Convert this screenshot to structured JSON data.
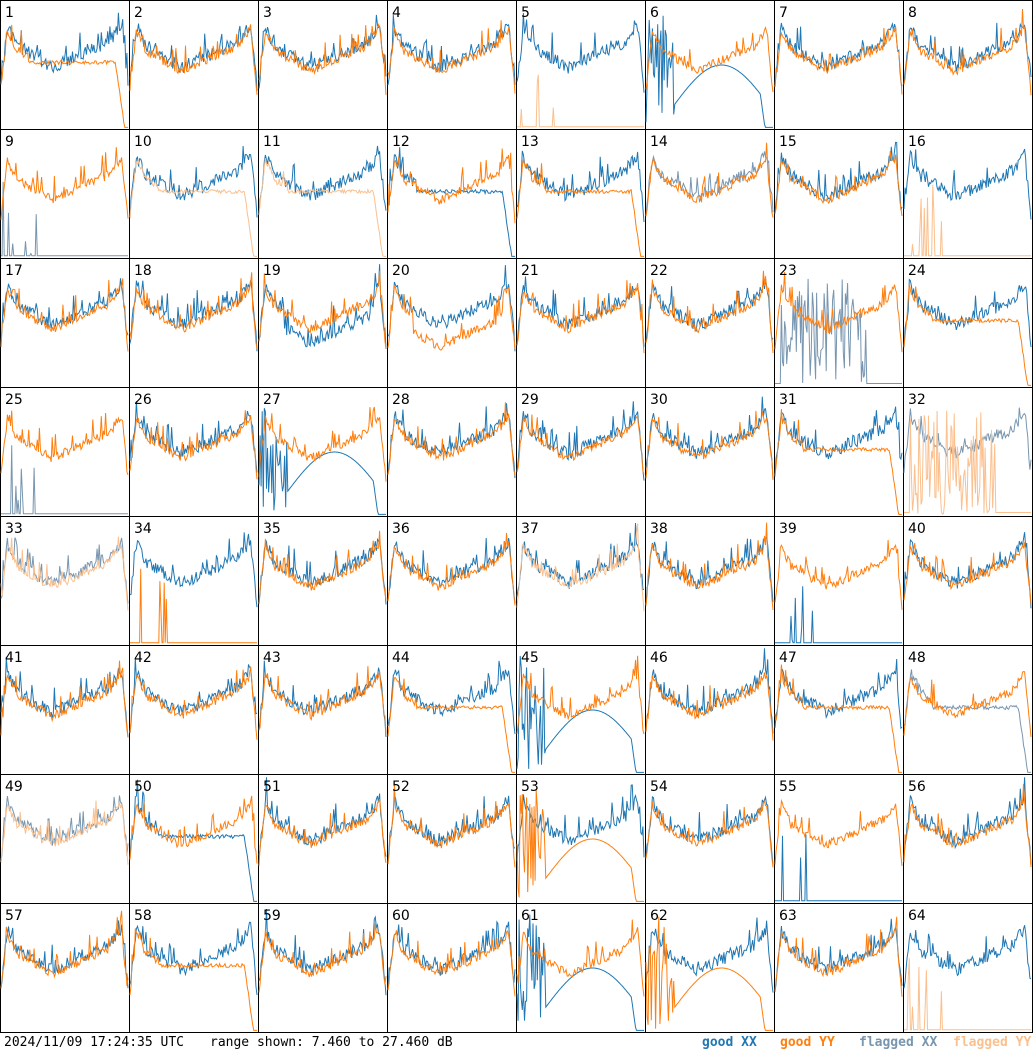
{
  "footer": {
    "timestamp": "2024/11/09 17:24:35 UTC",
    "range": "range shown: 7.460 to 27.460 dB",
    "legend": {
      "good_xx": "good XX",
      "good_yy": "good YY",
      "flagged_xx": "flagged XX",
      "flagged_yy": "flagged YY"
    }
  },
  "colors": {
    "good_xx": "#1f77b4",
    "good_yy": "#ff7f0e",
    "flagged_xx": "#7896b0",
    "flagged_yy": "#fbc08e"
  },
  "chart_data": {
    "type": "line",
    "ylim": [
      7.46,
      27.46
    ],
    "yunit": "dB",
    "panels": [
      {
        "id": "1",
        "xx": "good",
        "yy": "good",
        "shape": "yy-drop"
      },
      {
        "id": "2",
        "xx": "good",
        "yy": "good",
        "shape": "normal"
      },
      {
        "id": "3",
        "xx": "good",
        "yy": "good",
        "shape": "normal"
      },
      {
        "id": "4",
        "xx": "good",
        "yy": "good",
        "shape": "normal"
      },
      {
        "id": "5",
        "xx": "good",
        "yy": "flagged",
        "shape": "yy-dead"
      },
      {
        "id": "6",
        "xx": "good",
        "yy": "good",
        "shape": "xx-wave"
      },
      {
        "id": "7",
        "xx": "good",
        "yy": "good",
        "shape": "normal"
      },
      {
        "id": "8",
        "xx": "good",
        "yy": "good",
        "shape": "normal"
      },
      {
        "id": "9",
        "xx": "flagged",
        "yy": "good",
        "shape": "xx-dead"
      },
      {
        "id": "10",
        "xx": "good",
        "yy": "flagged",
        "shape": "yy-drop"
      },
      {
        "id": "11",
        "xx": "good",
        "yy": "flagged",
        "shape": "yy-drop"
      },
      {
        "id": "12",
        "xx": "good",
        "yy": "good",
        "shape": "xx-drop"
      },
      {
        "id": "13",
        "xx": "good",
        "yy": "good",
        "shape": "yy-drop"
      },
      {
        "id": "14",
        "xx": "flagged",
        "yy": "good",
        "shape": "normal"
      },
      {
        "id": "15",
        "xx": "good",
        "yy": "good",
        "shape": "normal"
      },
      {
        "id": "16",
        "xx": "good",
        "yy": "flagged",
        "shape": "yy-dead"
      },
      {
        "id": "17",
        "xx": "good",
        "yy": "good",
        "shape": "normal"
      },
      {
        "id": "18",
        "xx": "good",
        "yy": "good",
        "shape": "normal"
      },
      {
        "id": "19",
        "xx": "good",
        "yy": "good",
        "shape": "xx-low"
      },
      {
        "id": "20",
        "xx": "good",
        "yy": "good",
        "shape": "yy-low"
      },
      {
        "id": "21",
        "xx": "good",
        "yy": "good",
        "shape": "normal"
      },
      {
        "id": "22",
        "xx": "good",
        "yy": "good",
        "shape": "normal"
      },
      {
        "id": "23",
        "xx": "flagged",
        "yy": "good",
        "shape": "xx-noise"
      },
      {
        "id": "24",
        "xx": "good",
        "yy": "good",
        "shape": "yy-drop"
      },
      {
        "id": "25",
        "xx": "flagged",
        "yy": "good",
        "shape": "xx-dead"
      },
      {
        "id": "26",
        "xx": "good",
        "yy": "good",
        "shape": "normal"
      },
      {
        "id": "27",
        "xx": "good",
        "yy": "good",
        "shape": "xx-wave"
      },
      {
        "id": "28",
        "xx": "good",
        "yy": "good",
        "shape": "normal"
      },
      {
        "id": "29",
        "xx": "good",
        "yy": "good",
        "shape": "normal"
      },
      {
        "id": "30",
        "xx": "good",
        "yy": "good",
        "shape": "normal"
      },
      {
        "id": "31",
        "xx": "good",
        "yy": "good",
        "shape": "yy-drop"
      },
      {
        "id": "32",
        "xx": "flagged",
        "yy": "flagged",
        "shape": "yy-noise"
      },
      {
        "id": "33",
        "xx": "flagged",
        "yy": "flagged",
        "shape": "normal"
      },
      {
        "id": "34",
        "xx": "good",
        "yy": "good",
        "shape": "yy-dead"
      },
      {
        "id": "35",
        "xx": "good",
        "yy": "good",
        "shape": "normal"
      },
      {
        "id": "36",
        "xx": "good",
        "yy": "good",
        "shape": "normal"
      },
      {
        "id": "37",
        "xx": "good",
        "yy": "flagged",
        "shape": "normal"
      },
      {
        "id": "38",
        "xx": "good",
        "yy": "good",
        "shape": "normal"
      },
      {
        "id": "39",
        "xx": "good",
        "yy": "good",
        "shape": "xx-dead"
      },
      {
        "id": "40",
        "xx": "good",
        "yy": "good",
        "shape": "normal"
      },
      {
        "id": "41",
        "xx": "good",
        "yy": "good",
        "shape": "normal"
      },
      {
        "id": "42",
        "xx": "good",
        "yy": "good",
        "shape": "normal"
      },
      {
        "id": "43",
        "xx": "good",
        "yy": "good",
        "shape": "normal"
      },
      {
        "id": "44",
        "xx": "good",
        "yy": "good",
        "shape": "yy-drop"
      },
      {
        "id": "45",
        "xx": "good",
        "yy": "good",
        "shape": "xx-wave"
      },
      {
        "id": "46",
        "xx": "good",
        "yy": "good",
        "shape": "normal"
      },
      {
        "id": "47",
        "xx": "good",
        "yy": "good",
        "shape": "yy-drop"
      },
      {
        "id": "48",
        "xx": "flagged",
        "yy": "good",
        "shape": "xx-drop"
      },
      {
        "id": "49",
        "xx": "flagged",
        "yy": "flagged",
        "shape": "normal"
      },
      {
        "id": "50",
        "xx": "good",
        "yy": "good",
        "shape": "xx-drop"
      },
      {
        "id": "51",
        "xx": "good",
        "yy": "good",
        "shape": "normal"
      },
      {
        "id": "52",
        "xx": "good",
        "yy": "good",
        "shape": "normal"
      },
      {
        "id": "53",
        "xx": "good",
        "yy": "good",
        "shape": "yy-wave"
      },
      {
        "id": "54",
        "xx": "good",
        "yy": "good",
        "shape": "normal"
      },
      {
        "id": "55",
        "xx": "good",
        "yy": "good",
        "shape": "xx-dead"
      },
      {
        "id": "56",
        "xx": "good",
        "yy": "good",
        "shape": "normal"
      },
      {
        "id": "57",
        "xx": "good",
        "yy": "good",
        "shape": "normal"
      },
      {
        "id": "58",
        "xx": "good",
        "yy": "good",
        "shape": "yy-drop"
      },
      {
        "id": "59",
        "xx": "good",
        "yy": "good",
        "shape": "normal"
      },
      {
        "id": "60",
        "xx": "good",
        "yy": "good",
        "shape": "normal"
      },
      {
        "id": "61",
        "xx": "good",
        "yy": "good",
        "shape": "xx-wave"
      },
      {
        "id": "62",
        "xx": "good",
        "yy": "good",
        "shape": "yy-wave"
      },
      {
        "id": "63",
        "xx": "good",
        "yy": "good",
        "shape": "normal"
      },
      {
        "id": "64",
        "xx": "good",
        "yy": "flagged",
        "shape": "yy-dead"
      }
    ]
  }
}
